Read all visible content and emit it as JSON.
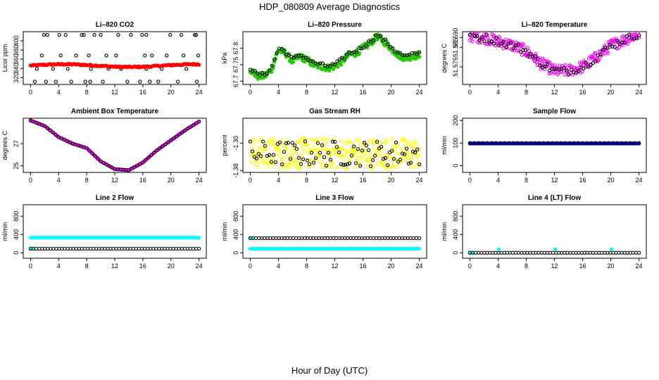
{
  "page": {
    "title": "HDP_080809  Average Diagnostics",
    "xlabel": "Hour of Day (UTC)"
  },
  "chart_data": [
    {
      "type": "scatter",
      "title": "Li–820 CO2",
      "ylabel": "Licor ppm",
      "xlim": [
        0,
        24
      ],
      "ylim": [
        305,
        420
      ],
      "xticks": [
        0,
        4,
        8,
        12,
        16,
        20,
        24
      ],
      "yticks": [
        320,
        340,
        360,
        380,
        400
      ],
      "series": [
        {
          "name": "co2-outliers",
          "color": "#000000",
          "fill": false,
          "shape": "circle",
          "points": [
            [
              1.9,
              413
            ],
            [
              2.4,
              413
            ],
            [
              4.1,
              413
            ],
            [
              5.0,
              413
            ],
            [
              7.3,
              413
            ],
            [
              7.6,
              413
            ],
            [
              9.1,
              413
            ],
            [
              10.0,
              413
            ],
            [
              12.5,
              413
            ],
            [
              14.3,
              413
            ],
            [
              15.9,
              413
            ],
            [
              16.5,
              413
            ],
            [
              19.9,
              413
            ],
            [
              21.5,
              413
            ],
            [
              23.4,
              413
            ],
            [
              23.6,
              413
            ],
            [
              0.6,
              311
            ],
            [
              2.2,
              311
            ],
            [
              3.6,
              311
            ],
            [
              5.8,
              311
            ],
            [
              7.8,
              311
            ],
            [
              8.5,
              311
            ],
            [
              10.3,
              311
            ],
            [
              13.8,
              311
            ],
            [
              15.6,
              311
            ],
            [
              17.0,
              311
            ],
            [
              18.2,
              311
            ],
            [
              21.0,
              311
            ],
            [
              23.7,
              311
            ],
            [
              1.6,
              368
            ],
            [
              4.3,
              368
            ],
            [
              6.5,
              368
            ],
            [
              8.3,
              368
            ],
            [
              10.8,
              368
            ],
            [
              12.2,
              368
            ],
            [
              16.3,
              368
            ],
            [
              17.3,
              368
            ],
            [
              19.4,
              368
            ],
            [
              21.8,
              368
            ],
            [
              23.9,
              368
            ],
            [
              0.9,
              339
            ],
            [
              3.2,
              339
            ],
            [
              5.3,
              339
            ],
            [
              8.6,
              339
            ],
            [
              11.1,
              339
            ],
            [
              12.9,
              339
            ],
            [
              16.5,
              339
            ],
            [
              18.7,
              339
            ],
            [
              22.2,
              339
            ]
          ]
        },
        {
          "name": "co2",
          "color": "#ff0000",
          "fill": true,
          "shape": "circle",
          "generator": "co2"
        }
      ]
    },
    {
      "type": "scatter",
      "title": "Li–820 Pressure",
      "ylabel": "kPa",
      "xlim": [
        0,
        24
      ],
      "ylim": [
        67.69,
        67.85
      ],
      "xticks": [
        0,
        4,
        8,
        12,
        16,
        20,
        24
      ],
      "yticks": [
        67.7,
        67.75,
        67.8
      ],
      "series": [
        {
          "name": "pressure",
          "color": "#22cc00",
          "fill": true,
          "shape": "circle",
          "generator": "pressure",
          "knots": [
            [
              0,
              67.735
            ],
            [
              1,
              67.715
            ],
            [
              2,
              67.715
            ],
            [
              3,
              67.735
            ],
            [
              4,
              67.795
            ],
            [
              5,
              67.785
            ],
            [
              6,
              67.76
            ],
            [
              7,
              67.775
            ],
            [
              8,
              67.765
            ],
            [
              9,
              67.75
            ],
            [
              10,
              67.745
            ],
            [
              11,
              67.74
            ],
            [
              12,
              67.745
            ],
            [
              13,
              67.76
            ],
            [
              14,
              67.78
            ],
            [
              15,
              67.785
            ],
            [
              16,
              67.8
            ],
            [
              17,
              67.815
            ],
            [
              18,
              67.835
            ],
            [
              19,
              67.82
            ],
            [
              20,
              67.8
            ],
            [
              21,
              67.78
            ],
            [
              22,
              67.77
            ],
            [
              23,
              67.775
            ],
            [
              24,
              67.78
            ]
          ]
        },
        {
          "name": "pressure-avg",
          "color": "#000000",
          "fill": false,
          "shape": "circle",
          "generator": "pressure-avg"
        }
      ]
    },
    {
      "type": "scatter",
      "title": "Li–820 Temperature",
      "ylabel": "degrees C",
      "xlim": [
        0,
        24
      ],
      "ylim": [
        51.566,
        51.593
      ],
      "xticks": [
        0,
        4,
        8,
        12,
        16,
        20,
        24
      ],
      "yticks": [
        51.575,
        51.585,
        51.59
      ],
      "series": [
        {
          "name": "licor-temp",
          "color": "#ff00ff",
          "fill": false,
          "shape": "circle",
          "generator": "licortemp",
          "knots": [
            [
              0,
              51.591
            ],
            [
              2,
              51.59
            ],
            [
              4,
              51.588
            ],
            [
              6,
              51.586
            ],
            [
              8,
              51.583
            ],
            [
              10,
              51.577
            ],
            [
              12,
              51.573
            ],
            [
              14,
              51.573
            ],
            [
              16,
              51.575
            ],
            [
              18,
              51.58
            ],
            [
              20,
              51.586
            ],
            [
              22,
              51.589
            ],
            [
              24,
              51.592
            ]
          ]
        },
        {
          "name": "licor-temp-avg",
          "color": "#000000",
          "fill": false,
          "shape": "circle",
          "generator": "licortemp-avg"
        }
      ]
    },
    {
      "type": "scatter",
      "title": "Ambient Box Temperature",
      "ylabel": "degrees C",
      "xlim": [
        0,
        24
      ],
      "ylim": [
        24.4,
        29.3
      ],
      "xticks": [
        0,
        4,
        8,
        12,
        16,
        20,
        24
      ],
      "yticks": [
        25,
        27
      ],
      "series": [
        {
          "name": "ambient",
          "color": "#ff00ff",
          "fill": true,
          "shape": "circle",
          "generator": "ambient",
          "knots": [
            [
              0,
              29.1
            ],
            [
              2,
              28.6
            ],
            [
              4,
              27.6
            ],
            [
              6,
              27.0
            ],
            [
              8,
              26.6
            ],
            [
              10,
              25.4
            ],
            [
              12,
              24.7
            ],
            [
              14,
              24.6
            ],
            [
              16,
              25.3
            ],
            [
              18,
              26.4
            ],
            [
              20,
              27.3
            ],
            [
              22,
              28.2
            ],
            [
              24,
              29.0
            ]
          ]
        },
        {
          "name": "ambient-avg",
          "color": "#000000",
          "fill": false,
          "shape": "circle",
          "generator": "ambient-avg"
        }
      ]
    },
    {
      "type": "scatter",
      "title": "Gas Stream RH",
      "ylabel": "percent",
      "xlim": [
        0,
        24
      ],
      "ylim": [
        -1.385,
        -1.228
      ],
      "xticks": [
        0,
        4,
        8,
        12,
        16,
        20,
        24
      ],
      "yticks": [
        -1.38,
        -1.3
      ],
      "series": [
        {
          "name": "rh",
          "color": "#ffff00",
          "fill": false,
          "shape": "circle",
          "generator": "rh"
        },
        {
          "name": "rh-avg",
          "color": "#000000",
          "fill": false,
          "shape": "circle",
          "generator": "rh-avg"
        }
      ]
    },
    {
      "type": "scatter",
      "title": "Sample Flow",
      "ylabel": "ml/min",
      "xlim": [
        0,
        24
      ],
      "ylim": [
        -30,
        210
      ],
      "xticks": [
        0,
        4,
        8,
        12,
        16,
        20,
        24
      ],
      "yticks": [
        0,
        100,
        200
      ],
      "series": [
        {
          "name": "sample",
          "color": "#0000cc",
          "fill": true,
          "shape": "circle",
          "generator": "const",
          "value": 98,
          "npts": 110
        },
        {
          "name": "sample-avg",
          "color": "#000000",
          "fill": false,
          "shape": "circle",
          "generator": "const",
          "value": 100,
          "npts": 40
        }
      ]
    },
    {
      "type": "scatter",
      "title": "Line 2 Flow",
      "ylabel": "ml/min",
      "xlim": [
        0,
        24
      ],
      "ylim": [
        -120,
        1050
      ],
      "xticks": [
        0,
        4,
        8,
        12,
        16,
        20,
        24
      ],
      "yticks": [
        0,
        400,
        800
      ],
      "series": [
        {
          "name": "line2-high",
          "color": "#00ffff",
          "fill": true,
          "shape": "circle",
          "generator": "const",
          "value": 330,
          "npts": 130
        },
        {
          "name": "line2-low",
          "color": "#00ffff",
          "fill": true,
          "shape": "circle",
          "generator": "const",
          "value": 90,
          "npts": 3
        },
        {
          "name": "line2-avg",
          "color": "#000000",
          "fill": false,
          "shape": "circle",
          "generator": "const",
          "value": 90,
          "npts": 60
        }
      ]
    },
    {
      "type": "scatter",
      "title": "Line 3 Flow",
      "ylabel": "ml/min",
      "xlim": [
        0,
        24
      ],
      "ylim": [
        -120,
        1050
      ],
      "xticks": [
        0,
        4,
        8,
        12,
        16,
        20,
        24
      ],
      "yticks": [
        0,
        400,
        800
      ],
      "series": [
        {
          "name": "line3-low",
          "color": "#00ffff",
          "fill": true,
          "shape": "circle",
          "generator": "const",
          "value": 90,
          "npts": 130
        },
        {
          "name": "line3-high-cyan",
          "color": "#00ffff",
          "fill": true,
          "shape": "circle",
          "generator": "const",
          "value": 320,
          "npts": 3
        },
        {
          "name": "line3-avg",
          "color": "#000000",
          "fill": false,
          "shape": "circle",
          "generator": "const",
          "value": 320,
          "npts": 60
        }
      ]
    },
    {
      "type": "scatter",
      "title": "Line 4 (LT) Flow",
      "ylabel": "ml/min",
      "xlim": [
        0,
        24
      ],
      "ylim": [
        -120,
        1050
      ],
      "xticks": [
        0,
        4,
        8,
        12,
        16,
        20,
        24
      ],
      "yticks": [
        0,
        400,
        800
      ],
      "series": [
        {
          "name": "line4-zero",
          "color": "#00ffff",
          "fill": true,
          "shape": "circle",
          "generator": "const",
          "value": 0,
          "npts": 3
        },
        {
          "name": "line4-spikes",
          "color": "#00ffff",
          "fill": true,
          "shape": "circle",
          "points": [
            [
              4.1,
              80
            ],
            [
              12.1,
              80
            ],
            [
              20.1,
              80
            ]
          ]
        },
        {
          "name": "line4-avg",
          "color": "#000000",
          "fill": false,
          "shape": "circle",
          "generator": "const",
          "value": 0,
          "npts": 60
        }
      ]
    }
  ]
}
